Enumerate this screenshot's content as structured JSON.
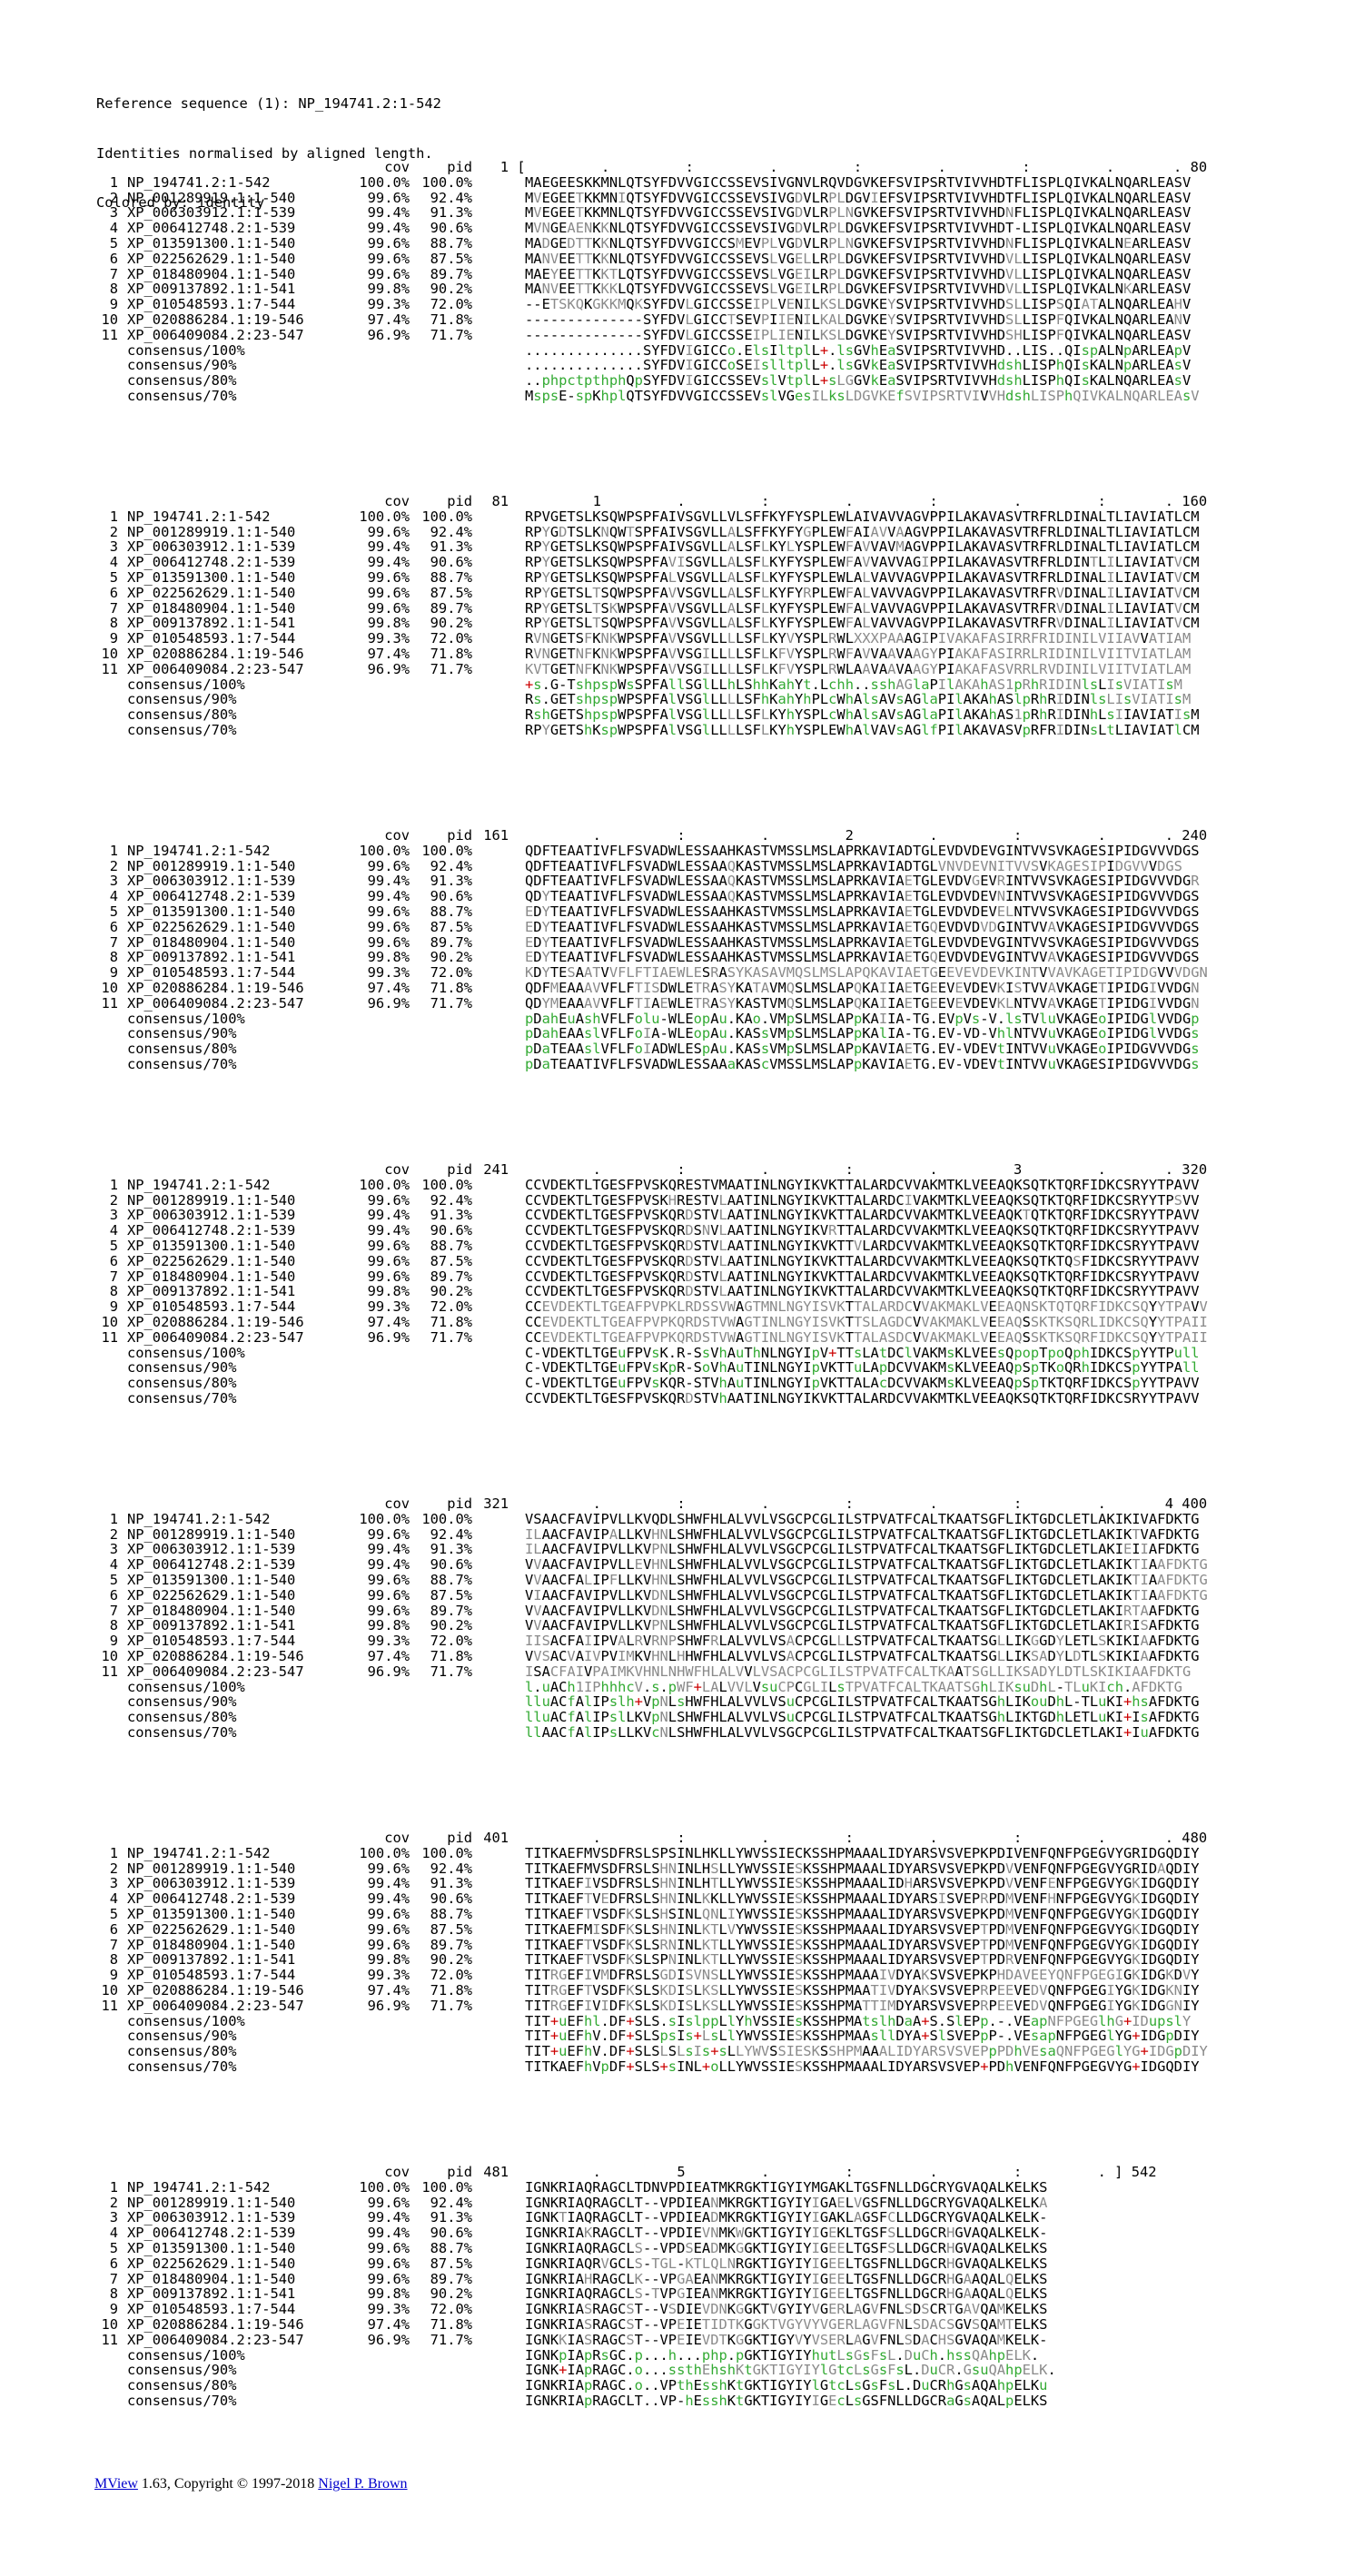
{
  "header": {
    "lines": [
      "Reference sequence (1): NP_194741.2:1-542",
      "Identities normalised by aligned length.",
      "Colored by: identity"
    ]
  },
  "column_labels": {
    "cov": "cov",
    "pid": "pid"
  },
  "sequences": [
    {
      "num": "1",
      "id": "NP_194741.2:1-542",
      "cov": "100.0%",
      "pid": "100.0%"
    },
    {
      "num": "2",
      "id": "NP_001289919.1:1-540",
      "cov": "99.6%",
      "pid": "92.4%"
    },
    {
      "num": "3",
      "id": "XP_006303912.1:1-539",
      "cov": "99.4%",
      "pid": "91.3%"
    },
    {
      "num": "4",
      "id": "XP_006412748.2:1-539",
      "cov": "99.4%",
      "pid": "90.6%"
    },
    {
      "num": "5",
      "id": "XP_013591300.1:1-540",
      "cov": "99.6%",
      "pid": "88.7%"
    },
    {
      "num": "6",
      "id": "XP_022562629.1:1-540",
      "cov": "99.6%",
      "pid": "87.5%"
    },
    {
      "num": "7",
      "id": "XP_018480904.1:1-540",
      "cov": "99.6%",
      "pid": "89.7%"
    },
    {
      "num": "8",
      "id": "XP_009137892.1:1-541",
      "cov": "99.8%",
      "pid": "90.2%"
    },
    {
      "num": "9",
      "id": "XP_010548593.1:7-544",
      "cov": "99.3%",
      "pid": "72.0%"
    },
    {
      "num": "10",
      "id": "XP_020886284.1:19-546",
      "cov": "97.4%",
      "pid": "71.8%"
    },
    {
      "num": "11",
      "id": "XP_006409084.2:23-547",
      "cov": "96.9%",
      "pid": "71.7%"
    }
  ],
  "consensus_labels": [
    "consensus/100%",
    "consensus/90%",
    "consensus/80%",
    "consensus/70%"
  ],
  "blocks": [
    {
      "ruler_start": "1",
      "ruler_pad": " [",
      "ruler": "         .         :         .         :         .         :         .       ",
      "ruler_end": ". 80",
      "seqs": [
        "MAEGEESKKMNLQTSYFDVVGICCSSEVSIVGNVLRQVDGVKEFSVIPSRTVIVVHDTFLISPLQIVKALNQARLEASV",
        "MVEGEETKKMNIQTSYFDVVGICCSSEVSIVGDVLRPLDGVIEFSVIPSRTVIVVHDTFLISPLQIVKALNQARLEASV",
        "MVEGEETKKMNLQTSYFDVVGICCSSEVSIVGDVLRPLNGVKEFSVIPSRTVIVVHDNFLISPLQIVKALNQARLEASV",
        "MVNGEAENKKNLQTSYFDVVGICCSSEVSIVGDVLRPLDGVKEFSVIPSRTVIVVHDT-LISPLQIVKALNQARLEASV",
        "MADGEDTTKKNLQTSYFDVVGICCSMEVPLVGDVLRPLNGVKEFSVIPSRTVIVVHDNFLISPLQIVKALNEARLEASV",
        "MANVEETTKKNLQTSYFDVVGICCSSEVSLVGELLRPLDGVKEFSVIPSRTVIVVHDVLLISPLQIVKALNQARLEASV",
        "MAEYEETTKKTLQTSYFDVVGICCSSEVSLVGEILRPLDGVKEFSVIPSRTVIVVHDVLLISPLQIVKALNQARLEASV",
        "MANVEETTKKKLQTSYFDVVGICCSSEVSLVGEILRPLDGVKEFSVIPSRTVIVVHDVLLISPLQIVKALNKARLEASV",
        "--ETSKQKGKKMQKSYFDVLGICCSSEIPLVENILKSLDGVKEYSVIPSRTVIVVHDSLLISPSQIATALNQARLEAHV",
        "--------------SYFDVLGICCTSEVPIIENILKALDGVKEYSVIPSRTVIVVHDSLLISPFQIVKALNQARLEANV",
        "--------------SYFDVLGICCSSEIPLIENILKSLDGVKEYSVIPSRTVIVVHDSHLISPFQIVKALNQARLEASV"
      ],
      "cons": [
        "..............SYFDVIGICCo.ElsIltplL+.lsGVhEaSVIPSRTVIVVHD..LIS..QIspALNpARLEApV",
        "..............SYFDVIGICCoSEIslltplL+.lsGVkEaSVIPSRTVIVVHdshLISPhQIsKALNpARLEAsV",
        "..phpctpthphQpSYFDVIGICCSSEVslVtplL+sLGGVkEaSVIPSRTVIVVHdshLISPhQIsKALNQARLEAsV",
        "MspsE-spKhplQTSYFDVVGICCSSEVslVGesILksLDGVKEfSVIPSRTVIVVHdshLISPhQIVKALNQARLEAsV"
      ]
    },
    {
      "ruler_start": "81",
      "ruler_pad": " ",
      "ruler": "         1         .         :         .         :         .         :       ",
      "ruler_end": ". 160",
      "seqs": [
        "RPVGETSLKSQWPSPFAIVSGVLLVLSFFKYFYSPLEWLAIVAVVAGVPPILAKAVASVTRFRLDINALTLIAVIATLCM",
        "RPYGDTSLKNQWTSPFAIVSGVLLALSFFKYFYGPLEWFAIAVVAAGVPPILAKAVASVTRFRLDINALTLIAVIATLCM",
        "RPYGETSLKSQWPSPFAIVSGVLLALSFLKYLYSPLEWFAVVAVMAGVPPILAKAVASVTRFRLDINALTLIAVIATLCM",
        "RPYGETSLKSQWPSPFAVISGVLLALSFLKYFYSPLEWFAVVAVVAGIPPILAKAVASVTRFRLDINTLILIAVIATVCM",
        "RPYGETSLKSQWPSPFALVSGVLLALSFLKYFYSPLEWLALVAVVAGVPPILAKAVASVTRFRLDINALILIAVIATVCM",
        "RPYGETSLTSQWPSPFAVVSGVLLALSFLKYFYRPLEWFALVAVVAGVPPILAKAVASVTRFRVDINALILIAVIATVCM",
        "RPYGETSLTSKWPSPFAVVSGVLLALSFLKYFYSPLEWFALVAVVAGVPPILAKAVASVTRFRVDINALILIAVIATVCM",
        "RPYGETSLTSQWPSPFAVVSGVLLALSFLKYFYSPLEWFALVAVVAGVPPILAKAVASVTRFRVDINALILIAVIATVCM",
        "RVNGETSFKNKWPSPFAVVSGVLLLLSFLKYVYSPLRWLXXXPAAAGIPIVAKAFASIRRFRIDINILVIIAVVATIAM",
        "RVNGETNFKNKWPSPFAVVSGILLLLSFLKFVYSPLRWFAVVAAVAAGYPIAKAFASIRRLRIDINILVIITVIATLAM",
        "KVTGETNFKNKWPSPFAVVSGILLLLSFLKFVYSPLRWLAAVAAVAAGYPIAKAFASVRRLRVDINILVIITVIATLAM"
      ],
      "cons": [
        "+s.G-TshpspWsSPFAllSGlLLhLShhKahYt.Lchh..sshAGlaPIlAKAhAS1pRhRIDINlsLIsVIATIsM",
        "Rs.GETshpspWPSPFAlVSGlLLLLSFhKahYhPLcWhAlsAVsAGlaPIlAKAhASlpRhRIDINlsLIsVIATIsM",
        "RshGETShpspWPSPFAlVSGlLLLLSFLKYhYSPLcWhAlsAVsAGlaPIlAKAhAS1pRhRIDINhLsIIAVIATIsM",
        "RPYGETShKspWPSPFAlVSGlLLLLSFLKYhYSPLEWhAlVAVsAGlfPIlAKAVASVpRFRIDINsLtLIAVIATlCM"
      ]
    },
    {
      "ruler_start": "161",
      "ruler_pad": " ",
      "ruler": "         .         :         .         2         .         :         .       ",
      "ruler_end": ". 240",
      "seqs": [
        "QDFTEAATIVFLFSVADWLESSAAHKASTVMSSLMSLAPRKAVIADTGLEVDVDEVGINTVVSVKAGESIPIDGVVVDGS",
        "QDFTEAATIVFLFSVADWLESSAAQKASTVMSSLMSLAPRKAVIADTGLVNVDEVNITVVSVKAGESIPIDGVVVDGS",
        "QDFTEAATIVFLFSVADWLESSAAQKASTVMSSLMSLAPRKAVIAETGLEVDVGEVRINTVVSVKAGESIPIDGVVVDGR",
        "QDYTEAATIVFLFSVADWLESSAAQKASTVMSSLMSLAPRKAVIAETGLEVDVDEVNINTVVSVKAGESIPIDGVVVDGS",
        "EDYTEAATIVFLFSVADWLESSAAHKASTVMSSLMSLAPRKAVIAETGLEVDVDEVELNTVVSVKAGESIPIDGVVVDGS",
        "EDYTEAATIVFLFSVADWLESSAAHKASTVMSSLMSLAPRKAVIAETGQEVDVDVDGINTVVAVKAGESIPIDGVVVDGS",
        "EDYTEAATIVFLFSVADWLESSAAHKASTVMSSLMSLAPRKAVIAETGLEVDVDEVGINTVVSVKAGESIPIDGVVVDGS",
        "EDYTEAATIVFLFSVADWLESSAAHKASTVMSSLMSLAPRKAVIAETGQEVDVDEVGINTVVAVKAGESIPIDGVVVDGS",
        "KDYTESAATVVFLFTIAEWLESRASYKASAVMQSLMSLAPQKAVIAETGEEVEVDEVKINTVVAVKAGETIPIDGVVVDGN",
        "QDFMEAAAVVFLFTISDWLETRASYKATAVMQSLMSLAPQKAIIAETGEEVEVDEVKISTVVAVKAGETIPIDGIVVDGN",
        "QDYMEAAAVVFLFTIAEWLETRASYKASTVMQSLMSLAPQKAIIAETGEEVEVDEVKLNTVVAVKAGETIPIDGIVVDGN"
      ],
      "cons": [
        "pDahEuAshVFLFolu-WLEopAu.KAo.VMpSLMSLAPpKAIIA-TG.EVpVs-V.lsTVluVKAGEoIPIDGlVVDGp",
        "pDahEAAslVFLFoIA-WLEopAu.KASsVMpSLMSLAPpKAlIA-TG.EV-VD-VhlNTVVuVKAGEoIPIDGlVVDGs",
        "pDaTEAAslVFLFoIADWLESpAu.KASsVMpSLMSLAPpKAVIAETG.EV-VDEVtINTVVuVKAGEoIPIDGVVVDGs",
        "pDaTEAATIVFLFSVADWLESSAAaKAScVMSSLMSLAPpKAVIAETG.EV-VDEVtINTVVuVKAGESIPIDGVVVDGs"
      ]
    },
    {
      "ruler_start": "241",
      "ruler_pad": " ",
      "ruler": "         .         :         .         :         .         3         .       ",
      "ruler_end": ". 320",
      "seqs": [
        "CCVDEKTLTGESFPVSKQRESTVMAATINLNGYIKVKTTALARDCVVAKMTKLVEEAQKSQTKTQRFIDKCSRYYTPAVV",
        "CCVDEKTLTGESFPVSKHRESTVLAATINLNGYIKVKTTALARDCIVAKMTKLVEEAQKSQTKTQRFIDKCSRYYTPSVV",
        "CCVDEKTLTGESFPVSKQRDSTVLAATINLNGYIKVKTTALARDCVVAKMTKLVEEAQKTQTKTQRFIDKCSRYYTPAVV",
        "CCVDEKTLTGESFPVSKQRDSNVLAATINLNGYIKVRTTALARDCVVAKMTKLVEEAQKSQTKTQRFIDKCSRYYTPAVV",
        "CCVDEKTLTGESFPVSKQRDSTVLAATINLNGYIKVKTTVLARDCVVAKMTKLVEEAQKSQTKTQRFIDKCSRYYTPAVV",
        "CCVDEKTLTGESFPVSKQRDSTVLAATINLNGYIKVKTTALARDCVVAKMTKLVEEAQKSQTKTQSFIDKCSRYYTPAVV",
        "CCVDEKTLTGESFPVSKQRDSTVLAATINLNGYIKVKTTALARDCVVAKMTKLVEEAQKSQTKTQRFIDKCSRYYTPAVV",
        "CCVDEKTLTGESFPVSKQRDSTVLAATINLNGYIKVKTTALARDCVVAKMTKLVEEAQKSQTKTQRFIDKCSRYYTPAVV",
        "CCEVDEKTLTGEAFPVPKLRDSSVWAGTMNLNGYISVKTTALARDCVVAKMAKLVEEAQNSKTQTQRFIDKCSQYYTPAVV",
        "CCEVDEKTLTGEAFPVPKQRDSTVWAGTINLNGYISVKTTSLAGDCVVAKMAKLVEEAQSSKTKSQRLIDKCSQYYTPAII",
        "CCEVDEKTLTGEAFPVPKQRDSTVWAGTINLNGYISVKTTALASDCVVAKMAKLVEEAQSSKTKSQRFIDKCSQYYTPAII"
      ],
      "cons": [
        "C-VDEKTLTGEuFPVsK.R-SsVhAuThNLNGYIpV+TTsLAtDClVAKMsKLVEEsQpopTpoQphIDKCSpYYTPull",
        "C-VDEKTLTGEuFPVsKpR-SoVhAuTINLNGYIpVKTTuLApDCVVAKMsKLVEEAQpSpTKoQRhIDKCSpYYTPAll",
        "C-VDEKTLTGEuFPVsKQR-STVhAuTINLNGYIpVKTTALAcDCVVAKMsKLVEEAQpSpTKTQRFIDKCSpYYTPAVV",
        "CCVDEKTLTGESFPVSKQRDSTVhAATINLNGYIKVKTTALARDCVVAKMTKLVEEAQKSQTKTQRFIDKCSRYYTPAVV"
      ]
    },
    {
      "ruler_start": "321",
      "ruler_pad": " ",
      "ruler": "         .         :         .         :         .         :         .       ",
      "ruler_end": "4 400",
      "seqs": [
        "VSAACFAVIPVLLKVQDLSHWFHLALVVLVSGCPCGLILSTPVATFCALTKAATSGFLIKTGDCLETLAKIKIVAFDKTG",
        "ILAACFAVIPALLKVHNLSHWFHLALVVLVSGCPCGLILSTPVATFCALTKAATSGFLIKTGDCLETLAKIKTVAFDKTG",
        "ILAACFAVIPVLLKVPNLSHWFHLALVVLVSGCPCGLILSTPVATFCALTKAATSGFLIKTGDCLETLAKIEIIAFDKTG",
        "VVAACFAVIPVLLEVHNLSHWFHLALVVLVSGCPCGLILSTPVATFCALTKAATSGFLIKTGDCLETLAKIKTIAAFDKTG",
        "VVAACFALIPFLLKVHNLSHWFHLALVVLVSGCPCGLILSTPVATFCALTKAATSGFLIKTGDCLETLAKIKTIAAFDKTG",
        "VIAACFAVIPVLLKVDNLSHWFHLALVVLVSGCPCGLILSTPVATFCALTKAATSGFLIKTGDCLETLAKIKTIAAFDKTG",
        "VVAACFAVIPVLLKVDNLSHWFHLALVVLVSGCPCGLILSTPVATFCALTKAATSGFLIKTGDCLETLAKIRTAAFDKTG",
        "VVAACFAVIPVLLKVPNLSHWFHLALVVLVSGCPCGLILSTPVATFCALTKAATSGFLIKTGDCLETLAKIRISAFDKTG",
        "IISACFAIIPVALRVRNPSHWFRLALVVLVSACPCGLLLSTPVATFCALTKAATSGLLIKGGDYLETLSKIKIAAFDKTG",
        "VVSACVAIVPVIMKVHNLHHWFHLALVVLVSACPCGLILSTPVATFCALTKAATSGLLIKSADYLDTLSKIKIAAFDKTG",
        "ISACFAIVPAIMKVHNLNHWFHLALVVLVSACPCGLILSTPVATFCALTKAATSGLLIKSADYLDTLSKIKIAAFDKTG"
      ],
      "cons": [
        "l.uACh1IPhhhcV.s.pWF+LALVVLVsuCPCGLILsTPVATFCALTKAATSGhLIKsuDhL-TLuKIch.AFDKTG",
        "lluACfAlIPslh+VpNLsHWFHLALVVLVSuCPCGLILSTPVATFCALTKAATSGhLIKouDhL-TLuKI+hsAFDKTG",
        "lluACfAlIPslLKVpNLSHWFHLALVVLVSuCPCGLILSTPVATFCALTKAATSGhLIKTGDhLETLuKI+IsAFDKTG",
        "llAACfAlIPsLLKVcNLSHWFHLALVVLVSGCPCGLILSTPVATFCALTKAATSGFLIKTGDCLETLAKI+IuAFDKTG"
      ]
    },
    {
      "ruler_start": "401",
      "ruler_pad": " ",
      "ruler": "         .         :         .         :         .         :         .       ",
      "ruler_end": ". 480",
      "seqs": [
        "TITKAEFMVSDFRSLSPSINLHKLLYWVSSIECKSSHPMAAALIDYARSVSVEPKPDIVENFQNFPGEGVYGRIDGQDIY",
        "TITKAEFMVSDFRSLSHNINLHSLLYWVSSIESKSSHPMAAALIDYARSVSVEPKPDVVENFQNFPGEGVYGRIDAQDIY",
        "TITKAEFIVSDFRSLSHNINLHTLLYWVSSIESKSSHPMAAALIDHARSVSVEPKPDVVENFENFPGEGVYGKIDGQDIY",
        "TITKAEFTVEDFRSLSHNINLKKLLYWVSSIESKSSHPMAAALIDYARSISVEPRPDMVENFHNFPGEGVYGKIDGQDIY",
        "TITKAEFTVSDFKSLSHSINLQNLIYWVSSIESKSSHPMAAALIDYARSVSVEPKPDMVENFQNFPGEGVYGKIDGQDIY",
        "TITKAEFMISDFKSLSHNINLKTLVYWVSSIESKSSHPMAAALIDYARSVSVEPTPDMVENFQNFPGEGVYGKIDGQDIY",
        "TITKAEFTVSDFKSLSRNINLKTLLYWVSSIESKSSHPMAAALIDYARSVSVEPTPDMVENFQNFPGEGVYGKIDGQDIY",
        "TITKAEFTVSDFKSLSPNINLKTLLYWVSSIESKSSHPMAAALIDYARSVSVEPTPDRVENFQNFPGEGVYGKIDGQDIY",
        "TITRGEFIVMDFRSLSGDISVNSLLYWVSSIESKSSHPMAAAIVDYAKSVSVEPKPHDAVEEYQNFPGEGIGKIDGKDVY",
        "TITRGEFTVSDFKSLSKDISLKSLLYWVSSIESKSSHPMAATIVDYAKSVSVEPRPEEVEDVQNFPGEGIYGKIDGKNIY",
        "TITRGEFIVIDFKSLSKDISLKSLLYWVSSIESKSSHPMATTIMDYARSVSVEPRPEEVEDVQNFPGEGIYGKIDGGNIY"
      ],
      "cons": [
        "TIT+uEFhl.DF+SLS.sIslppLlYhVSSIEsKSSHPMAtslhDaA+S.SlEPp.-.VEapNFPGEGlhG+IDupslY",
        "TIT+uEFhV.DF+SLSpsIs+LsLlYWVSSIESKSSHPMAAsllDYA+SlSVEPpP-.VEsapNFPGEGlYG+IDGpDIY",
        "TIT+uEFhV.DF+SLSLSLsIs+sLLYWVSSIESKSSHPMAAALIDYARSVSVEPpPDhVEsaQNFPGEGlYG+IDGpDIY",
        "TITKAEFhVpDF+SLS+sINL+oLLYWVSSIESKSSHPMAAALIDYARSVSVEP+PDhVENFQNFPGEGVYG+IDGQDIY"
      ]
    },
    {
      "ruler_start": "481",
      "ruler_pad": " ",
      "ruler": "         .         5         .         :         .         :         ",
      "ruler_end": ". ] 542",
      "seqs": [
        "IGNKRIAQRAGCLTDNVPDIEATMKRGKTIGYIYMGAKLTGSFNLLDGCRYGVAQALKELKS",
        "IGNKRIAQRAGCLT--VPDIEANMKRGKTIGYIYIGAELVGSFNLLDGCRYGVAQALKELKA",
        "IGNKTIAQRAGCLT--VPDIEADMKRGKTIGYIYIGAKLAGSFCLLDGCRYGVAQALKELK-",
        "IGNKRIAKRAGCLT--VPDIEVNMKWGKTIGYIYIGEKLTGSFSLLDGCRHGVAQALKELK-",
        "IGNKRIAQRAGCLS--VPDSEADMKGGKTIGYIYIGEELTGSFSLLDGCRHGVAQALKELKS",
        "IGNKRIAQRVGCLS-TGL-KTLQLNRGKTIGYIYIGEELTGSFNLLDGCRHGVAQALKELKS",
        "IGNKRIAHRAGCLK--VPGAEANMKRGKTIGYIYIGEELTGSFNLLDGCRHGAAQALQELKS",
        "IGNKRIAQRAGCLS-TVPGIEANMKRGKTIGYIYIGEELTGSFNLLDGCRHGAAQALQELKS",
        "IGNKRIASRAGCST--VSDIEVDNKGGKTVGYIYVGERLAGVFNLSDSCRTGAVQAMKELKS",
        "IGNKRIASRAGCST--VPEIETIDTKGGKTVGYVYVGERLAGVFNLSDACSGVSQAMTELKS",
        "IGNKKIASRAGCST--VPEIEVDTKGGKTIGYVYVSERLAGVFNLSDACHSGVAQAMKELK-"
      ],
      "cons": [
        "IGNKpIApRsGC.p...h...php.pGKTIGYIYhutLsGsFsL.DuCh.hssQAhpELK.",
        "IGNK+IApRAGC.o...ssthEhshKtGKTIGYIYlGtcLsGsFsL.DuCR.GsuQAhpELK.",
        "IGNKRIApRAGC.o..VPthEsshKtGKTIGYIYlGtcLsGsFsL.DuCRhGsAQAhpELKu",
        "IGNKRIApRAGCLT..VP-hEsshKtGKTIGYIYIGEcLsGSFNLLDGCRaGsAQALpELKS"
      ]
    }
  ],
  "footer": {
    "link1": "MView",
    "text": " 1.63, Copyright © 1997-2018 ",
    "link2": "Nigel P. Brown"
  }
}
